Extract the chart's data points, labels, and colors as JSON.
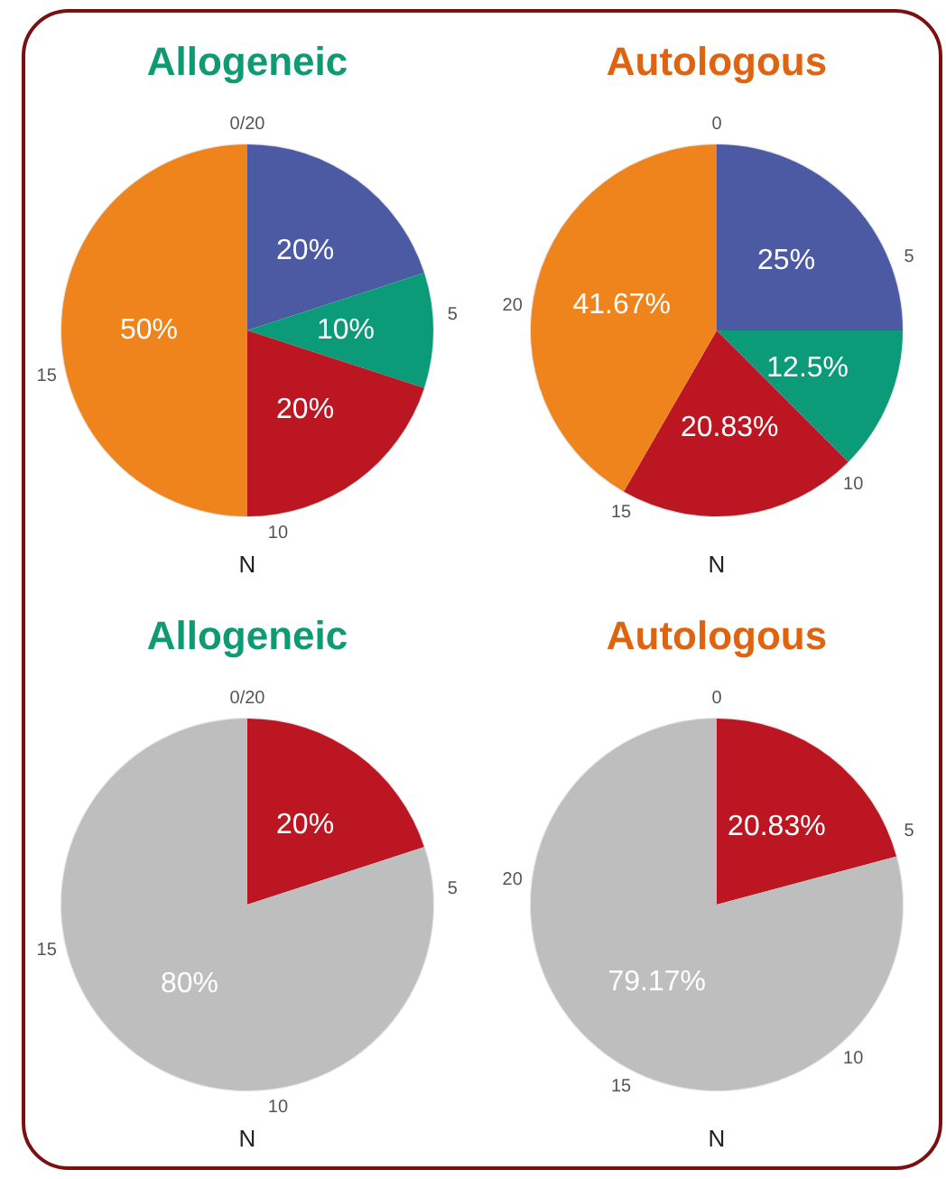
{
  "chart_data": [
    {
      "type": "pie",
      "title": "Allogeneic",
      "xlabel": "N",
      "categories": [
        null,
        null,
        null,
        null
      ],
      "values": [
        20,
        10,
        20,
        50
      ],
      "colors": [
        "#4c5aa3",
        "#0b9b78",
        "#bb1622",
        "#f0841c"
      ],
      "value_labels": [
        "20%",
        "10%",
        "20%",
        "50%"
      ],
      "grid": true,
      "annotations": [
        "0/20",
        "5",
        "10",
        "15"
      ]
    },
    {
      "type": "pie",
      "title": "Autologous",
      "xlabel": "N",
      "categories": [
        null,
        null,
        null,
        null
      ],
      "values": [
        25,
        12.5,
        20.83,
        41.67
      ],
      "colors": [
        "#4c5aa3",
        "#0b9b78",
        "#bb1622",
        "#f0841c"
      ],
      "value_labels": [
        "25%",
        "12.5%",
        "20.83%",
        "41.67%"
      ],
      "grid": true,
      "annotations": [
        "0",
        "5",
        "10",
        "15",
        "20"
      ]
    },
    {
      "type": "pie",
      "title": "Allogeneic",
      "xlabel": "N",
      "categories": [
        null,
        null
      ],
      "values": [
        20,
        80
      ],
      "colors": [
        "#bb1622",
        "#bebebe"
      ],
      "value_labels": [
        "20%",
        "80%"
      ],
      "grid": true,
      "annotations": [
        "0/20",
        "5",
        "10",
        "15"
      ]
    },
    {
      "type": "pie",
      "title": "Autologous",
      "xlabel": "N",
      "categories": [
        null,
        null
      ],
      "values": [
        20.83,
        79.17
      ],
      "colors": [
        "#bb1622",
        "#bebebe"
      ],
      "value_labels": [
        "20.83%",
        "79.17%"
      ],
      "grid": true,
      "annotations": [
        "0",
        "5",
        "10",
        "15",
        "20"
      ]
    }
  ]
}
